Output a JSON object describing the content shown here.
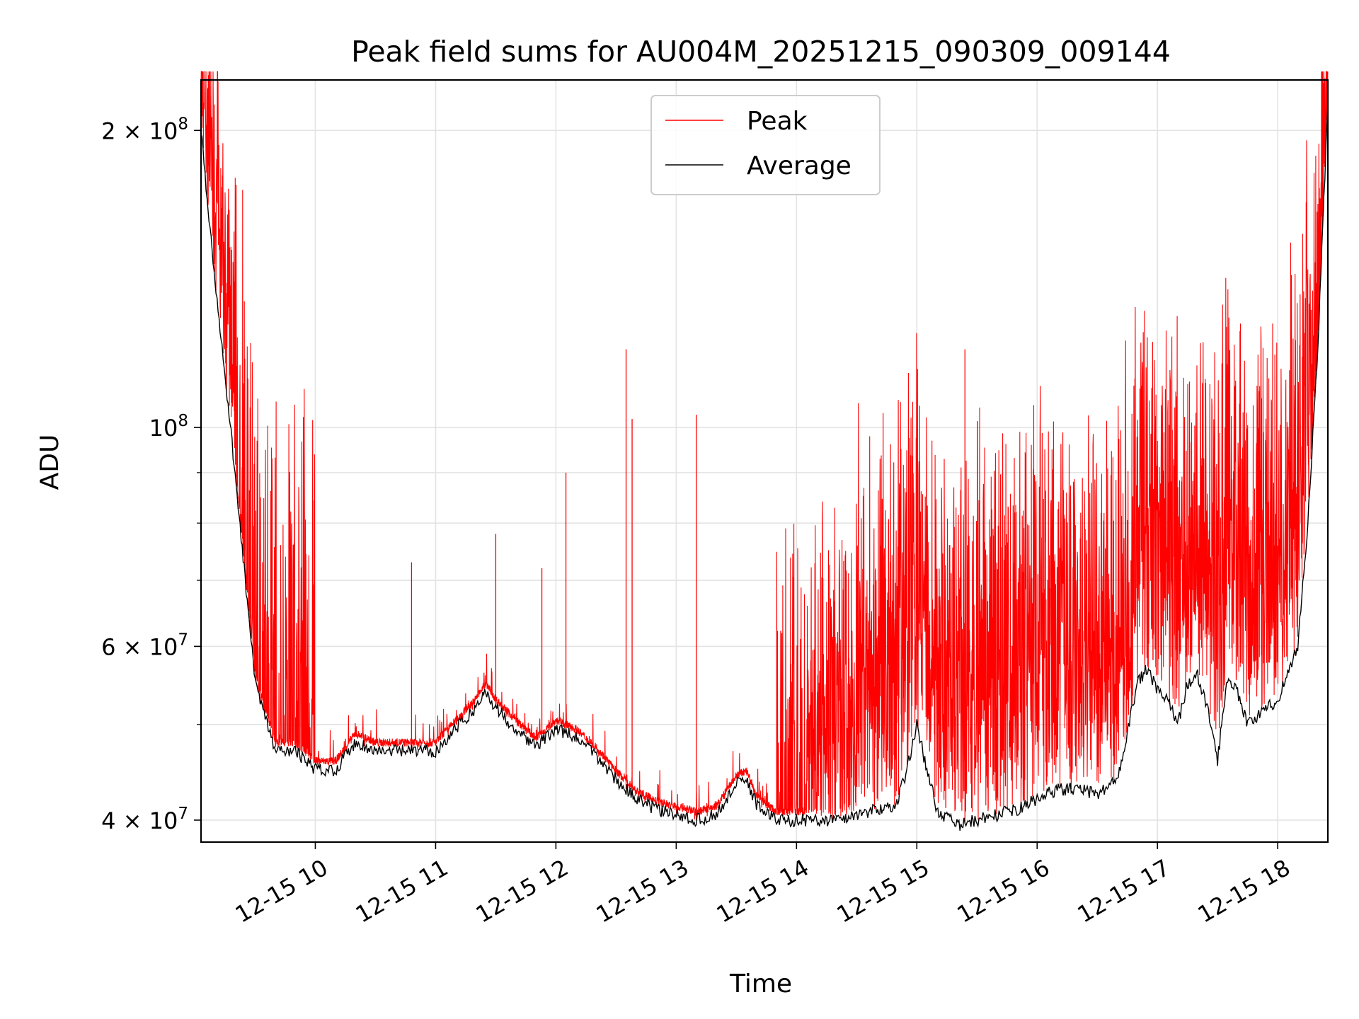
{
  "chart_data": {
    "type": "line",
    "title": "Peak field sums for AU004M_20251215_090309_009144",
    "xlabel": "Time",
    "ylabel": "ADU",
    "y_scale": "log",
    "xlim": [
      "2025-12-15 09:03",
      "2025-12-15 18:25"
    ],
    "ylim": [
      38000000,
      225000000
    ],
    "x_ticks": [
      "12-15 10",
      "12-15 11",
      "12-15 12",
      "12-15 13",
      "12-15 14",
      "12-15 15",
      "12-15 16",
      "12-15 17",
      "12-15 18"
    ],
    "y_ticks": [
      {
        "value": 40000000,
        "mantissa": "4",
        "exponent": "7"
      },
      {
        "value": 60000000,
        "mantissa": "6",
        "exponent": "7"
      },
      {
        "value": 100000000,
        "mantissa": "",
        "exponent": "8"
      },
      {
        "value": 200000000,
        "mantissa": "2",
        "exponent": "8"
      }
    ],
    "grid": true,
    "legend_position": "top-center",
    "series": [
      {
        "name": "Average",
        "color": "#000000",
        "x": [
          "09:03",
          "09:10",
          "09:20",
          "09:30",
          "09:40",
          "09:50",
          "10:00",
          "10:10",
          "10:20",
          "10:30",
          "10:40",
          "10:50",
          "11:00",
          "11:10",
          "11:20",
          "11:25",
          "11:30",
          "11:40",
          "11:50",
          "12:00",
          "12:10",
          "12:20",
          "12:30",
          "12:40",
          "12:50",
          "13:00",
          "13:10",
          "13:20",
          "13:30",
          "13:35",
          "13:40",
          "13:50",
          "14:00",
          "14:10",
          "14:20",
          "14:30",
          "14:40",
          "14:50",
          "14:55",
          "15:00",
          "15:05",
          "15:10",
          "15:20",
          "15:30",
          "15:40",
          "15:50",
          "16:00",
          "16:10",
          "16:20",
          "16:30",
          "16:40",
          "16:50",
          "16:55",
          "17:00",
          "17:05",
          "17:10",
          "17:15",
          "17:20",
          "17:25",
          "17:30",
          "17:35",
          "17:40",
          "17:45",
          "17:50",
          "18:00",
          "18:10",
          "18:15",
          "18:20",
          "18:25"
        ],
        "values": [
          200000000,
          140000000,
          90000000,
          55000000,
          47000000,
          47000000,
          45000000,
          45000000,
          48000000,
          47000000,
          47000000,
          47000000,
          47000000,
          49500000,
          52000000,
          54000000,
          52000000,
          49500000,
          47500000,
          49500000,
          48500000,
          46500000,
          44000000,
          42000000,
          41000000,
          40500000,
          40000000,
          40500000,
          43500000,
          44000000,
          41500000,
          40000000,
          40000000,
          40000000,
          40000000,
          40500000,
          41000000,
          41500000,
          45000000,
          50000000,
          45000000,
          41000000,
          39500000,
          40000000,
          40500000,
          41000000,
          42000000,
          43000000,
          43000000,
          42500000,
          44000000,
          55000000,
          57000000,
          54000000,
          53000000,
          50000000,
          55000000,
          56000000,
          52000000,
          46000000,
          56000000,
          54000000,
          50000000,
          51000000,
          53000000,
          60000000,
          80000000,
          120000000,
          215000000
        ]
      },
      {
        "name": "Peak",
        "color": "#ff0000"
      }
    ]
  }
}
